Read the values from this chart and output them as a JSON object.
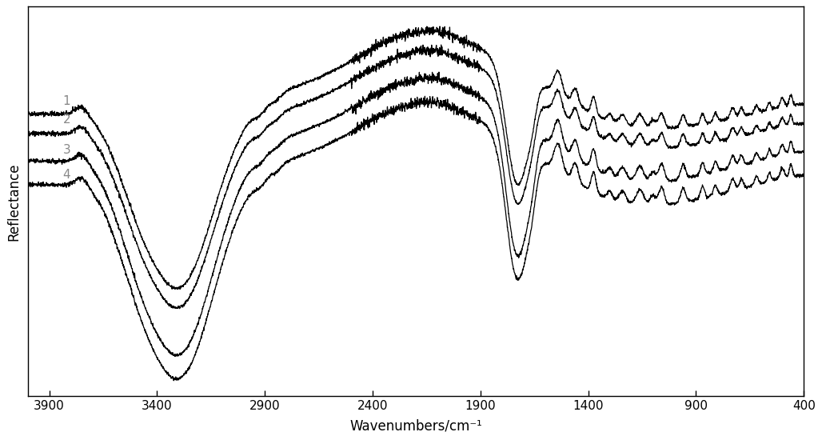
{
  "title": "",
  "xlabel": "Wavenumbers/cm⁻¹",
  "ylabel": "Reflectance",
  "xlim": [
    4000,
    400
  ],
  "x_ticks": [
    3900,
    3400,
    2900,
    2400,
    1900,
    1400,
    900,
    400
  ],
  "line_color": "#000000",
  "background_color": "#ffffff",
  "line_width": 0.9,
  "seed": 42,
  "noise_scale": 0.004
}
